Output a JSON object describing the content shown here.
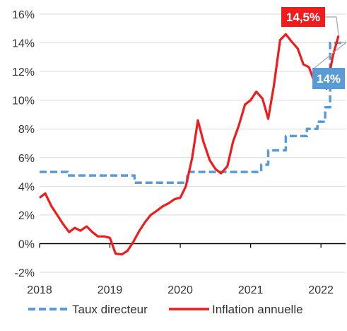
{
  "chart_data": {
    "type": "line",
    "title": "",
    "xlabel": "",
    "ylabel": "",
    "x_ticks": [
      "2018",
      "2019",
      "2020",
      "2021",
      "2022"
    ],
    "y_ticks": [
      "-2%",
      "0%",
      "2%",
      "4%",
      "6%",
      "8%",
      "10%",
      "12%",
      "14%",
      "16%"
    ],
    "ylim": [
      -2,
      16
    ],
    "xlim": [
      2018,
      2022.35
    ],
    "grid": true,
    "legend_position": "bottom",
    "series": [
      {
        "name": "Taux directeur",
        "color": "#5b9bd5",
        "style": "dashed-step",
        "points": [
          [
            2018.0,
            5.0
          ],
          [
            2018.4,
            5.0
          ],
          [
            2018.4,
            4.75
          ],
          [
            2019.35,
            4.75
          ],
          [
            2019.35,
            4.25
          ],
          [
            2020.1,
            4.25
          ],
          [
            2020.1,
            5.0
          ],
          [
            2021.15,
            5.0
          ],
          [
            2021.15,
            5.5
          ],
          [
            2021.25,
            5.5
          ],
          [
            2021.25,
            6.5
          ],
          [
            2021.5,
            6.5
          ],
          [
            2021.5,
            7.5
          ],
          [
            2021.8,
            7.5
          ],
          [
            2021.8,
            8.0
          ],
          [
            2021.95,
            8.0
          ],
          [
            2021.95,
            8.5
          ],
          [
            2022.06,
            8.5
          ],
          [
            2022.06,
            9.5
          ],
          [
            2022.13,
            9.5
          ],
          [
            2022.13,
            14.0
          ],
          [
            2022.35,
            14.0
          ]
        ]
      },
      {
        "name": "Inflation annuelle",
        "color": "#ee1c1c",
        "style": "solid",
        "points": [
          [
            2018.0,
            3.2
          ],
          [
            2018.08,
            3.5
          ],
          [
            2018.17,
            2.6
          ],
          [
            2018.25,
            2.0
          ],
          [
            2018.33,
            1.4
          ],
          [
            2018.42,
            0.8
          ],
          [
            2018.5,
            1.1
          ],
          [
            2018.58,
            0.9
          ],
          [
            2018.67,
            1.2
          ],
          [
            2018.75,
            0.8
          ],
          [
            2018.83,
            0.5
          ],
          [
            2018.92,
            0.5
          ],
          [
            2019.0,
            0.4
          ],
          [
            2019.08,
            -0.7
          ],
          [
            2019.17,
            -0.75
          ],
          [
            2019.25,
            -0.5
          ],
          [
            2019.33,
            0.1
          ],
          [
            2019.42,
            0.9
          ],
          [
            2019.5,
            1.5
          ],
          [
            2019.58,
            2.0
          ],
          [
            2019.67,
            2.3
          ],
          [
            2019.75,
            2.6
          ],
          [
            2019.83,
            2.8
          ],
          [
            2019.92,
            3.1
          ],
          [
            2020.0,
            3.2
          ],
          [
            2020.08,
            4.0
          ],
          [
            2020.17,
            6.0
          ],
          [
            2020.25,
            8.6
          ],
          [
            2020.33,
            7.1
          ],
          [
            2020.42,
            5.8
          ],
          [
            2020.5,
            5.2
          ],
          [
            2020.58,
            4.9
          ],
          [
            2020.67,
            5.4
          ],
          [
            2020.75,
            7.1
          ],
          [
            2020.83,
            8.2
          ],
          [
            2020.92,
            9.7
          ],
          [
            2021.0,
            10.0
          ],
          [
            2021.08,
            10.6
          ],
          [
            2021.17,
            10.1
          ],
          [
            2021.25,
            8.7
          ],
          [
            2021.33,
            11.0
          ],
          [
            2021.42,
            14.2
          ],
          [
            2021.5,
            14.6
          ],
          [
            2021.58,
            14.1
          ],
          [
            2021.67,
            13.6
          ],
          [
            2021.75,
            12.5
          ],
          [
            2021.83,
            12.3
          ],
          [
            2021.92,
            11.1
          ],
          [
            2022.0,
            11.3
          ],
          [
            2022.08,
            10.8
          ],
          [
            2022.17,
            13.1
          ],
          [
            2022.25,
            14.5
          ]
        ]
      }
    ],
    "annotations": [
      {
        "text": "14,5%",
        "series": "Inflation annuelle",
        "color": "#ee1c1c"
      },
      {
        "text": "14%",
        "series": "Taux directeur",
        "color": "#5b9bd5"
      }
    ]
  }
}
